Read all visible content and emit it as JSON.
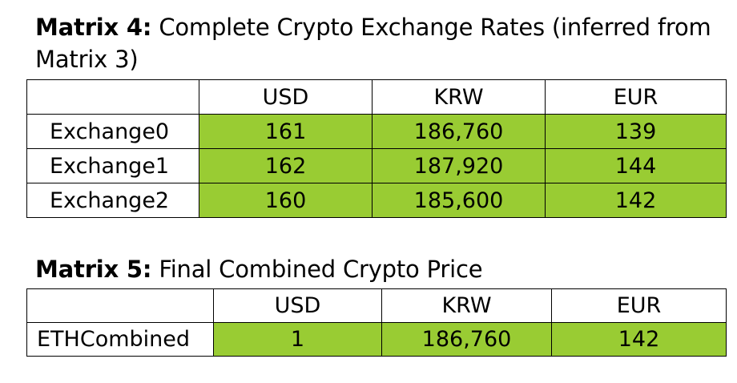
{
  "matrix4": {
    "title_bold": "Matrix 4:",
    "title_rest": " Complete Crypto Exchange Rates (inferred from Matrix 3)",
    "columns": [
      "USD",
      "KRW",
      "EUR"
    ],
    "rows": [
      {
        "label": "Exchange0",
        "values": [
          "161",
          "186,760",
          "139"
        ]
      },
      {
        "label": "Exchange1",
        "values": [
          "162",
          "187,920",
          "144"
        ]
      },
      {
        "label": "Exchange2",
        "values": [
          "160",
          "185,600",
          "142"
        ]
      }
    ]
  },
  "matrix5": {
    "title_bold": "Matrix 5:",
    "title_rest": " Final Combined Crypto Price",
    "columns": [
      "USD",
      "KRW",
      "EUR"
    ],
    "rows": [
      {
        "label": "ETHCombined",
        "values": [
          "1",
          "186,760",
          "142"
        ]
      }
    ]
  },
  "colors": {
    "value_fill": "#99cc33",
    "border": "#000000"
  }
}
